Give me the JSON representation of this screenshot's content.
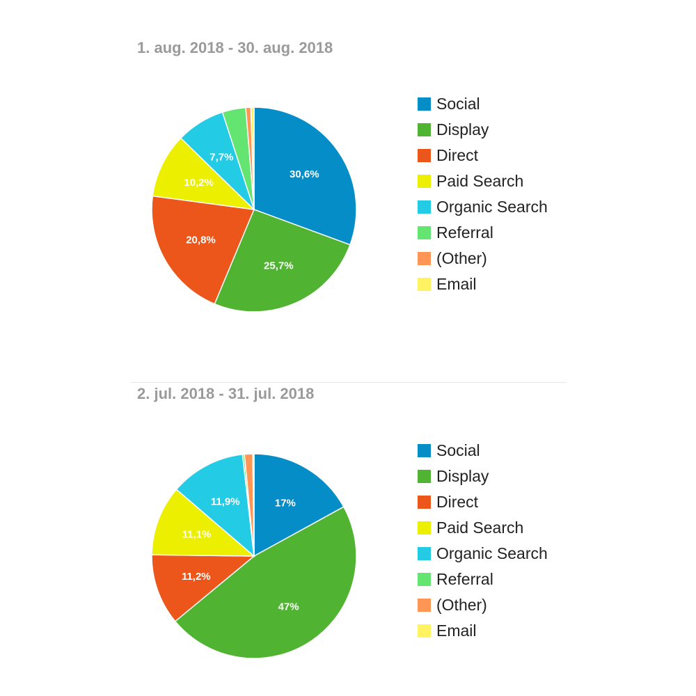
{
  "colors": {
    "Social": "#058dc7",
    "Display": "#50b432",
    "Direct": "#ed561b",
    "Paid Search": "#edef00",
    "Organic Search": "#24cbe5",
    "Referral": "#64e572",
    "(Other)": "#ff9655",
    "Email": "#fff263"
  },
  "chart_data": [
    {
      "type": "pie",
      "title": "1. aug. 2018 - 30. aug. 2018",
      "legend": "right",
      "slices": [
        {
          "name": "Social",
          "value": 30.6,
          "label": "30,6%"
        },
        {
          "name": "Display",
          "value": 25.7,
          "label": "25,7%"
        },
        {
          "name": "Direct",
          "value": 20.8,
          "label": "20,8%"
        },
        {
          "name": "Paid Search",
          "value": 10.2,
          "label": "10,2%"
        },
        {
          "name": "Organic Search",
          "value": 7.7,
          "label": "7,7%"
        },
        {
          "name": "Referral",
          "value": 3.7,
          "label": ""
        },
        {
          "name": "(Other)",
          "value": 0.8,
          "label": ""
        },
        {
          "name": "Email",
          "value": 0.5,
          "label": ""
        }
      ]
    },
    {
      "type": "pie",
      "title": "2. jul. 2018 - 31. jul. 2018",
      "legend": "right",
      "slices": [
        {
          "name": "Social",
          "value": 17,
          "label": "17%"
        },
        {
          "name": "Display",
          "value": 47,
          "label": "47%"
        },
        {
          "name": "Direct",
          "value": 11.2,
          "label": "11,2%"
        },
        {
          "name": "Paid Search",
          "value": 11.1,
          "label": "11,1%"
        },
        {
          "name": "Organic Search",
          "value": 11.9,
          "label": "11,9%"
        },
        {
          "name": "Referral",
          "value": 0.3,
          "label": ""
        },
        {
          "name": "(Other)",
          "value": 1.3,
          "label": ""
        },
        {
          "name": "Email",
          "value": 0.2,
          "label": ""
        }
      ]
    }
  ]
}
